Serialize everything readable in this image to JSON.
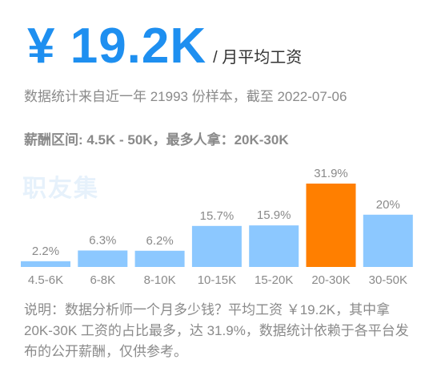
{
  "headline": {
    "salary": "¥ 19.2K",
    "unit": "/ 月平均工资"
  },
  "subtitle": "数据统计来自近一年 21993 份样本，截至 2022-07-06",
  "range_line": "薪酬区间: 4.5K - 50K，最多人拿：20K-30K",
  "watermark": "职友集",
  "note": "说明：数据分析师一个月多少钱？平均工资 ￥19.2K，其中拿 20K-30K 工资的占比最多，达 31.9%，数据统计依赖于各平台发布的公开薪酬，仅供参考。",
  "colors": {
    "accent": "#1e8ff0",
    "bar": "#8cc8ff",
    "highlight_bar": "#ff7f00"
  },
  "chart_data": {
    "type": "bar",
    "categories": [
      "4.5-6K",
      "6-8K",
      "8-10K",
      "10-15K",
      "15-20K",
      "20-30K",
      "30-50K"
    ],
    "values": [
      2.2,
      6.3,
      6.2,
      15.7,
      15.9,
      31.9,
      20
    ],
    "value_labels": [
      "2.2%",
      "6.3%",
      "6.2%",
      "15.7%",
      "15.9%",
      "31.9%",
      "20%"
    ],
    "highlight": "20-30K",
    "ylim": [
      0,
      31.9
    ]
  }
}
